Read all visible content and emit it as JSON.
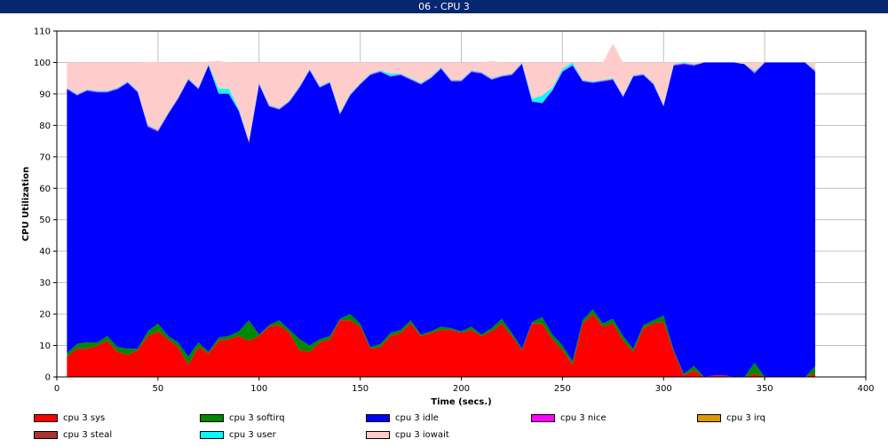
{
  "window": {
    "title": "06 - CPU 3"
  },
  "chart_data": {
    "type": "area",
    "stacked": true,
    "title": "06 - CPU 3",
    "xlabel": "Time (secs.)",
    "ylabel": "CPU Utilization",
    "xlim": [
      0,
      400
    ],
    "ylim": [
      0,
      110
    ],
    "xticks": [
      0,
      50,
      100,
      150,
      200,
      250,
      300,
      350,
      400
    ],
    "yticks": [
      0,
      10,
      20,
      30,
      40,
      50,
      60,
      70,
      80,
      90,
      100,
      110
    ],
    "grid": true,
    "legend_position": "bottom",
    "x": [
      5,
      10,
      15,
      20,
      25,
      30,
      35,
      40,
      45,
      50,
      55,
      60,
      65,
      70,
      75,
      80,
      85,
      90,
      95,
      100,
      105,
      110,
      115,
      120,
      125,
      130,
      135,
      140,
      145,
      150,
      155,
      160,
      165,
      170,
      175,
      180,
      185,
      190,
      195,
      200,
      205,
      210,
      215,
      220,
      225,
      230,
      235,
      240,
      245,
      250,
      255,
      260,
      265,
      270,
      275,
      280,
      285,
      290,
      295,
      300,
      305,
      310,
      315,
      320,
      325,
      330,
      335,
      340,
      345,
      350,
      355,
      360,
      365,
      370,
      375
    ],
    "series": [
      {
        "name": "cpu 3 sys",
        "color": "#ff0000",
        "values": [
          6.5,
          9,
          9,
          10,
          11.5,
          8,
          7,
          8.5,
          13,
          14.5,
          12,
          9.5,
          4,
          9.5,
          7.5,
          11.5,
          12,
          13,
          11.5,
          13,
          16,
          16.5,
          14,
          8.5,
          8,
          11,
          12,
          18,
          18,
          16,
          9,
          9.5,
          13,
          14,
          17,
          13,
          14,
          15,
          15,
          14,
          15,
          13,
          14.5,
          17,
          13,
          8.5,
          17,
          17,
          12,
          8.5,
          4,
          17,
          20,
          16,
          17,
          11.5,
          8,
          15.5,
          17,
          17.5,
          8,
          0.5,
          2,
          0,
          0.5,
          0.5,
          0,
          0,
          1,
          0,
          0,
          0,
          0,
          0,
          1
        ]
      },
      {
        "name": "cpu 3 softirq",
        "color": "#008800",
        "values": [
          1,
          1.5,
          2,
          1,
          1.5,
          1.5,
          2,
          0.5,
          1.5,
          2.5,
          1,
          1.5,
          2.5,
          1.5,
          0.5,
          1,
          1,
          1.5,
          6.5,
          0.5,
          0.5,
          1.5,
          1,
          3.5,
          2,
          1,
          1,
          0.5,
          2,
          1,
          0.5,
          1,
          1,
          1,
          1,
          0.5,
          0.5,
          1,
          0.5,
          0.5,
          1,
          0.5,
          1,
          1.5,
          1,
          0.5,
          0.5,
          2,
          1.5,
          1.5,
          1,
          1,
          1.5,
          1,
          1.5,
          1.5,
          1,
          1,
          1,
          2,
          0.5,
          0.5,
          1.5,
          0,
          0,
          0,
          0,
          0,
          3.5,
          0,
          0,
          0,
          0,
          0,
          2.5
        ]
      },
      {
        "name": "cpu 3 idle",
        "color": "#0000ff",
        "values": [
          84,
          79,
          80,
          79.5,
          77.5,
          82,
          84.5,
          81.5,
          65,
          61,
          70.5,
          77.5,
          88,
          80.5,
          91,
          77.5,
          77,
          70,
          56.5,
          79.5,
          69.5,
          67,
          72.5,
          80,
          87.5,
          80,
          80.5,
          65,
          69.5,
          76,
          86.5,
          86.5,
          81.5,
          81,
          76.5,
          79.5,
          80.5,
          82,
          78.5,
          79.5,
          81,
          83,
          79,
          77,
          82,
          90.5,
          70,
          68,
          77.5,
          87,
          94,
          76,
          72,
          77,
          76,
          76,
          86.5,
          79.5,
          75,
          66.5,
          90.5,
          98.5,
          95.5,
          100,
          99.5,
          99.5,
          100,
          99.5,
          92,
          100,
          100,
          100,
          100,
          100,
          93.5
        ]
      },
      {
        "name": "cpu 3 nice",
        "color": "#ff00ff",
        "values": [
          0.2,
          0.2,
          0.2,
          0.2,
          0.2,
          0.2,
          0.2,
          0.2,
          0.3,
          0.3,
          0.2,
          0.2,
          0.2,
          0.2,
          0.2,
          0.2,
          0.2,
          0.2,
          0.2,
          0.2,
          0.2,
          0.2,
          0.2,
          0.2,
          0.2,
          0.2,
          0.2,
          0.2,
          0.2,
          0.2,
          0.2,
          0.2,
          0.2,
          0.2,
          0.2,
          0.2,
          0.2,
          0.2,
          0.2,
          0.2,
          0.2,
          0.2,
          0.2,
          0.2,
          0.2,
          0.2,
          0.2,
          0.2,
          0.2,
          0.2,
          0.2,
          0.2,
          0.2,
          0.2,
          0.2,
          0.2,
          0.2,
          0.2,
          0.2,
          0.2,
          0.2,
          0.2,
          0.2,
          0,
          0,
          0,
          0,
          0,
          0.3,
          0,
          0,
          0,
          0,
          0,
          0.3
        ]
      },
      {
        "name": "cpu 3 irq",
        "color": "#dd9900",
        "values": [
          0,
          0,
          0,
          0,
          0,
          0,
          0,
          0,
          0,
          0,
          0,
          0,
          0,
          0,
          0,
          0,
          0,
          0,
          0,
          0,
          0,
          0,
          0,
          0,
          0,
          0,
          0,
          0,
          0,
          0,
          0,
          0,
          0,
          0,
          0,
          0,
          0,
          0,
          0,
          0,
          0,
          0,
          0,
          0,
          0,
          0,
          0,
          0,
          0,
          0,
          0,
          0,
          0,
          0,
          0,
          0,
          0,
          0,
          0,
          0,
          0,
          0,
          0,
          0,
          0,
          0,
          0,
          0,
          0,
          0,
          0,
          0,
          0,
          0,
          0
        ]
      },
      {
        "name": "cpu 3 steal",
        "color": "#aa3333",
        "values": [
          0,
          0,
          0,
          0,
          0,
          0,
          0,
          0,
          0,
          0,
          0,
          0,
          0,
          0,
          0,
          0,
          0,
          0,
          0,
          0,
          0,
          0,
          0,
          0,
          0,
          0,
          0,
          0,
          0,
          0,
          0,
          0,
          0,
          0,
          0,
          0,
          0,
          0,
          0,
          0,
          0,
          0,
          0,
          0,
          0,
          0,
          0,
          0,
          0,
          0,
          0,
          0,
          0,
          0,
          0,
          0,
          0,
          0,
          0,
          0,
          0,
          0,
          0,
          0,
          0,
          0,
          0,
          0,
          0,
          0,
          0,
          0,
          0,
          0,
          0
        ]
      },
      {
        "name": "cpu 3 user",
        "color": "#00ffff",
        "values": [
          0.3,
          0.3,
          0.3,
          0.3,
          0.3,
          0.3,
          0.3,
          0.3,
          0.3,
          0.3,
          0.3,
          0.3,
          0.3,
          0.3,
          0.3,
          1.5,
          1.5,
          0.5,
          0.3,
          0.3,
          0.3,
          0.3,
          0.3,
          0.3,
          0.3,
          0.3,
          0.3,
          0.3,
          0.3,
          0.3,
          0.3,
          0.3,
          0.8,
          0.3,
          0.3,
          0.3,
          0.3,
          0.3,
          0.3,
          0.3,
          0.3,
          0.3,
          0.3,
          0.3,
          0.3,
          0.3,
          0.8,
          2.3,
          0.8,
          0.8,
          0.8,
          0.3,
          0.3,
          0.3,
          0.3,
          0.3,
          0.3,
          0.3,
          0.3,
          0.3,
          0.3,
          0.3,
          0.3,
          0,
          0,
          0,
          0,
          0,
          0.5,
          0,
          0,
          0,
          0,
          0,
          0.5
        ]
      },
      {
        "name": "cpu 3 iowait",
        "color": "#ffcccc",
        "values": [
          8,
          10,
          8.5,
          9,
          9,
          8,
          6,
          9,
          20,
          21.5,
          16,
          11,
          5,
          8,
          0.8,
          8.8,
          8.3,
          14.8,
          25,
          6.5,
          13.5,
          14.5,
          12,
          7.5,
          2,
          7.5,
          6,
          16,
          10,
          6.5,
          3.5,
          2.5,
          3.5,
          3.5,
          5,
          6.5,
          4.5,
          1.5,
          5.5,
          5.5,
          2.5,
          3,
          5.5,
          4,
          3.5,
          0,
          11.5,
          10.5,
          8,
          2,
          0,
          5.5,
          6,
          5.5,
          11,
          10.5,
          4,
          3.5,
          6.5,
          13.5,
          0.5,
          0,
          0.5,
          0,
          0,
          0,
          0,
          0.5,
          2.7,
          0,
          0,
          0,
          0,
          0,
          2.2
        ]
      }
    ]
  }
}
